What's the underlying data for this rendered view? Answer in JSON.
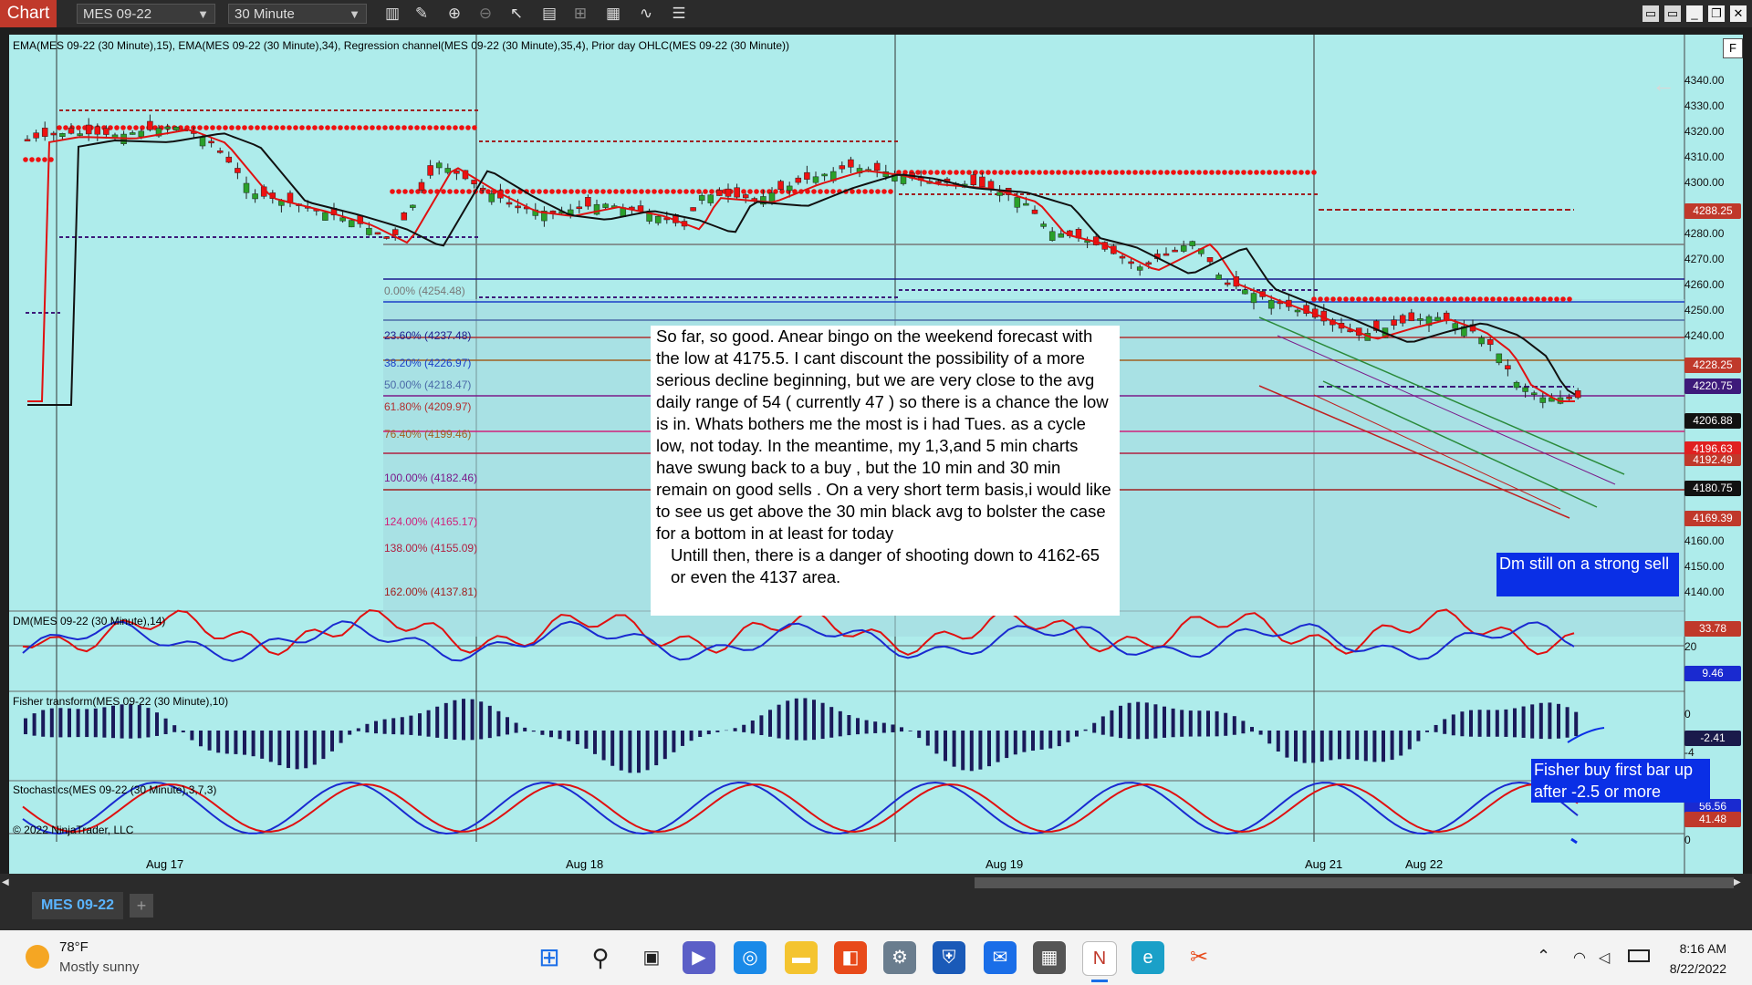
{
  "toolbar": {
    "app_tab": "Chart",
    "instrument": "MES 09-22",
    "interval": "30 Minute",
    "icons": [
      "bar-style-icon",
      "draw-icon",
      "zoom-in-icon",
      "zoom-out-icon",
      "pointer-icon",
      "properties-icon",
      "templates-icon",
      "strategies-icon",
      "indicators-icon",
      "list-icon"
    ]
  },
  "chart": {
    "indicators_title": "EMA(MES 09-22 (30 Minute),15), EMA(MES 09-22 (30 Minute),34), Regression channel(MES 09-22 (30 Minute),35,4), Prior day OHLC(MES 09-22 (30 Minute))",
    "f_button": "F",
    "copyright": "© 2022 NinjaTrader, LLC",
    "price_axis": [
      "4340.00",
      "4330.00",
      "4320.00",
      "4310.00",
      "4300.00",
      "4280.00",
      "4270.00",
      "4260.00",
      "4250.00",
      "4240.00",
      "4160.00",
      "4150.00",
      "4140.00"
    ],
    "price_badges": [
      {
        "text": "4288.25",
        "color": "#c0392b"
      },
      {
        "text": "4228.25",
        "color": "#c0392b"
      },
      {
        "text": "4220.75",
        "color": "#3d1a7a"
      },
      {
        "text": "4206.88",
        "color": "#111111"
      },
      {
        "text": "4196.63",
        "color": "#e02020"
      },
      {
        "text": "4192.49",
        "color": "#c0392b"
      },
      {
        "text": "4180.75",
        "color": "#111111"
      },
      {
        "text": "4169.39",
        "color": "#c0392b"
      }
    ],
    "fib_levels": [
      {
        "text": "0.00% (4254.48)",
        "color": "#777777"
      },
      {
        "text": "23.60% (4237.48)",
        "color": "#1a1a8c"
      },
      {
        "text": "38.20% (4226.97)",
        "color": "#1a3fc8"
      },
      {
        "text": "50.00% (4218.47)",
        "color": "#4a6aa8"
      },
      {
        "text": "61.80% (4209.97)",
        "color": "#b03030"
      },
      {
        "text": "76.40% (4199.46)",
        "color": "#a06020"
      },
      {
        "text": "100.00% (4182.46)",
        "color": "#7a1a8a"
      },
      {
        "text": "124.00% (4165.17)",
        "color": "#d0207a"
      },
      {
        "text": "138.00% (4155.09)",
        "color": "#b02040"
      },
      {
        "text": "162.00% (4137.81)",
        "color": "#a02020"
      }
    ],
    "dates": [
      "Aug 17",
      "Aug 18",
      "Aug 19",
      "Aug 21",
      "Aug 22"
    ]
  },
  "panels": {
    "dm": {
      "title": "DM(MES 09-22 (30 Minute),14)",
      "axis": "20",
      "val_plus": "33.78",
      "val_minus": "9.46"
    },
    "fisher": {
      "title": "Fisher transform(MES 09-22 (30 Minute),10)",
      "axis_zero": "0",
      "axis_neg": "-4",
      "value": "-2.41"
    },
    "stoch": {
      "title": "Stochastics(MES 09-22 (30 Minute),3,7,3)",
      "axis_zero": "0",
      "val_k": "56.56",
      "val_d": "41.48"
    }
  },
  "note": {
    "paragraph1": "So far, so good. Anear bingo on the weekend forecast with the low at 4175.5. I cant discount the possibility of a more serious decline beginning, but we are very close to the avg daily range of 54 ( currently 47 ) so there is a chance the low is in. Whats bothers me the most is i had Tues. as a cycle low, not today. In the meantime, my 1,3,and 5 min charts have swung back to a buy , but the 10 min and 30 min remain on good sells . On a very short term basis,i would like to see us get above the 30 min black avg to bolster the case for a bottom in at least for today",
    "paragraph2": "Untill then, there is a danger of shooting down to 4162-65 or even the 4137 area."
  },
  "callouts": {
    "dm": "Dm still on a strong sell",
    "fisher": "Fisher buy first bar up after -2.5 or more"
  },
  "tabs": {
    "instrument_tab": "MES 09-22",
    "add": "+"
  },
  "taskbar": {
    "weather_temp": "78°F",
    "weather_desc": "Mostly sunny",
    "time": "8:16 AM",
    "date": "8/22/2022",
    "apps": [
      "windows-start-icon",
      "search-icon",
      "task-view-icon",
      "teams-icon",
      "store-icon",
      "file-explorer-icon",
      "office-icon",
      "settings-icon",
      "defender-icon",
      "mail-icon",
      "calculator-icon",
      "ninjatrader-icon",
      "edge-icon",
      "snipping-tool-icon"
    ]
  }
}
